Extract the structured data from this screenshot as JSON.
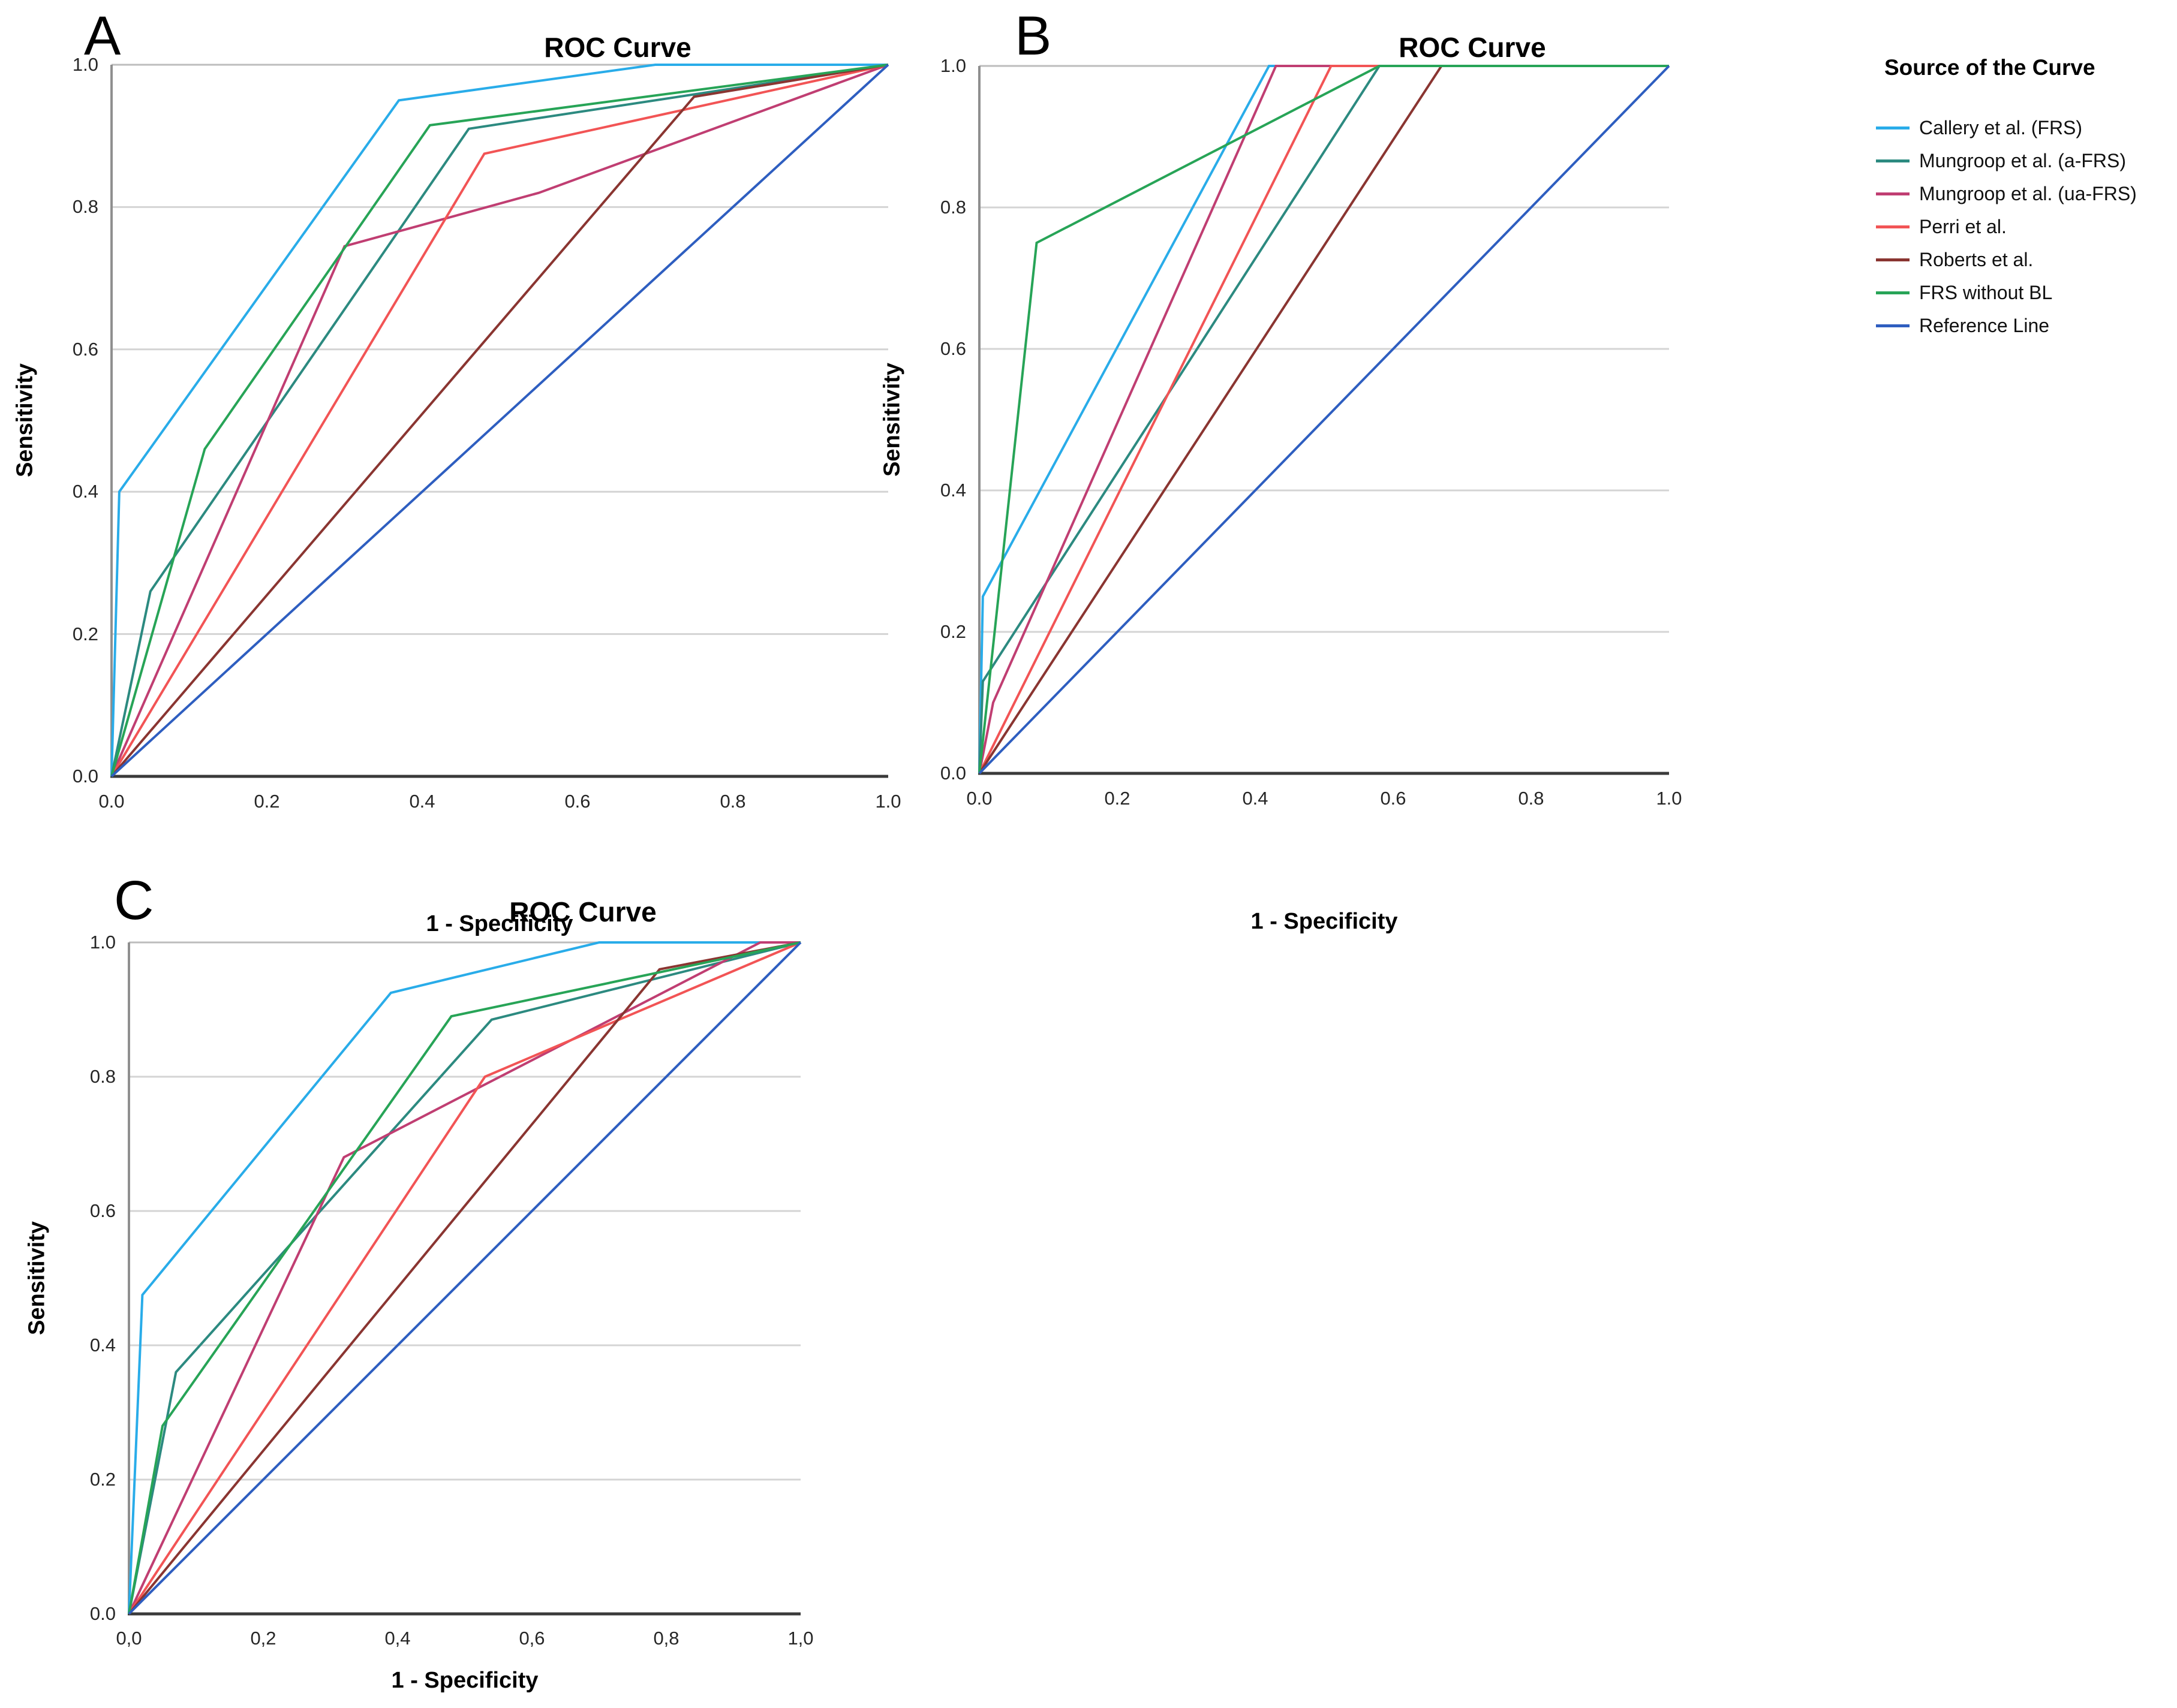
{
  "figure": {
    "background": "#ffffff"
  },
  "legend": {
    "title": "Source of the Curve",
    "items": [
      {
        "label": "Callery et al. (FRS)",
        "color": "#29ACE9"
      },
      {
        "label": "Mungroop et al. (a-FRS)",
        "color": "#2C8A80"
      },
      {
        "label": "Mungroop et al. (ua-FRS)",
        "color": "#C03E72"
      },
      {
        "label": "Perri et al.",
        "color": "#F25455"
      },
      {
        "label": "Roberts et al.",
        "color": "#8A3531"
      },
      {
        "label": "FRS without BL",
        "color": "#27A457"
      },
      {
        "label": "Reference Line",
        "color": "#2E5EC0"
      }
    ]
  },
  "chart_data": [
    {
      "type": "line",
      "panel_label": "A",
      "title": "ROC Curve",
      "xlabel": "1 - Specificity",
      "ylabel": "Sensitivity",
      "xlim": [
        0,
        1
      ],
      "ylim": [
        0,
        1
      ],
      "grid": "horizontal",
      "x_tick_labels": [
        "0.0",
        "0.2",
        "0.4",
        "0.6",
        "0.8",
        "1.0"
      ],
      "y_tick_labels": [
        "0.0",
        "0.2",
        "0.4",
        "0.6",
        "0.8",
        "1.0"
      ],
      "series": [
        {
          "name": "Callery et al. (FRS)",
          "color": "#29ACE9",
          "points": [
            [
              0,
              0
            ],
            [
              0.01,
              0.4
            ],
            [
              0.37,
              0.95
            ],
            [
              0.7,
              1.0
            ],
            [
              1,
              1
            ]
          ]
        },
        {
          "name": "Mungroop et al. (a-FRS)",
          "color": "#2C8A80",
          "points": [
            [
              0,
              0
            ],
            [
              0.05,
              0.26
            ],
            [
              0.46,
              0.91
            ],
            [
              1,
              1
            ]
          ]
        },
        {
          "name": "Mungroop et al. (ua-FRS)",
          "color": "#C03E72",
          "points": [
            [
              0,
              0
            ],
            [
              0.3,
              0.745
            ],
            [
              0.55,
              0.82
            ],
            [
              1,
              1
            ]
          ]
        },
        {
          "name": "Perri et al.",
          "color": "#F25455",
          "points": [
            [
              0,
              0
            ],
            [
              0.48,
              0.875
            ],
            [
              1,
              1
            ]
          ]
        },
        {
          "name": "Roberts et al.",
          "color": "#8A3531",
          "points": [
            [
              0,
              0
            ],
            [
              0.75,
              0.955
            ],
            [
              1,
              1
            ]
          ]
        },
        {
          "name": "FRS without BL",
          "color": "#27A457",
          "points": [
            [
              0,
              0
            ],
            [
              0.12,
              0.46
            ],
            [
              0.41,
              0.915
            ],
            [
              1,
              1
            ]
          ]
        },
        {
          "name": "Reference Line",
          "color": "#2E5EC0",
          "points": [
            [
              0,
              0
            ],
            [
              1,
              1
            ]
          ]
        }
      ]
    },
    {
      "type": "line",
      "panel_label": "B",
      "title": "ROC Curve",
      "xlabel": "1 - Specificity",
      "ylabel": "Sensitivity",
      "xlim": [
        0,
        1
      ],
      "ylim": [
        0,
        1
      ],
      "grid": "horizontal",
      "x_tick_labels": [
        "0.0",
        "0.2",
        "0.4",
        "0.6",
        "0.8",
        "1.0"
      ],
      "y_tick_labels": [
        "0.0",
        "0.2",
        "0.4",
        "0.6",
        "0.8",
        "1.0"
      ],
      "series": [
        {
          "name": "Callery et al. (FRS)",
          "color": "#29ACE9",
          "points": [
            [
              0,
              0
            ],
            [
              0.005,
              0.25
            ],
            [
              0.42,
              1.0
            ],
            [
              1,
              1
            ]
          ]
        },
        {
          "name": "Mungroop et al. (a-FRS)",
          "color": "#2C8A80",
          "points": [
            [
              0,
              0
            ],
            [
              0.005,
              0.13
            ],
            [
              0.58,
              1.0
            ],
            [
              1,
              1
            ]
          ]
        },
        {
          "name": "Mungroop et al. (ua-FRS)",
          "color": "#C03E72",
          "points": [
            [
              0,
              0
            ],
            [
              0.02,
              0.1
            ],
            [
              0.43,
              1.0
            ],
            [
              1,
              1
            ]
          ]
        },
        {
          "name": "Perri et al.",
          "color": "#F25455",
          "points": [
            [
              0,
              0
            ],
            [
              0.51,
              1.0
            ],
            [
              1,
              1
            ]
          ]
        },
        {
          "name": "Roberts et al.",
          "color": "#8A3531",
          "points": [
            [
              0,
              0
            ],
            [
              0.67,
              1.0
            ],
            [
              1,
              1
            ]
          ]
        },
        {
          "name": "FRS without BL",
          "color": "#27A457",
          "points": [
            [
              0,
              0
            ],
            [
              0.083,
              0.75
            ],
            [
              0.58,
              1.0
            ],
            [
              1,
              1
            ]
          ]
        },
        {
          "name": "Reference Line",
          "color": "#2E5EC0",
          "points": [
            [
              0,
              0
            ],
            [
              1,
              1
            ]
          ]
        }
      ]
    },
    {
      "type": "line",
      "panel_label": "C",
      "title": "ROC Curve",
      "xlabel": "1 - Specificity",
      "ylabel": "Sensitivity",
      "xlim": [
        0,
        1
      ],
      "ylim": [
        0,
        1
      ],
      "grid": "horizontal",
      "x_tick_labels": [
        "0,0",
        "0,2",
        "0,4",
        "0,6",
        "0,8",
        "1,0"
      ],
      "y_tick_labels": [
        "0.0",
        "0.2",
        "0.4",
        "0.6",
        "0.8",
        "1.0"
      ],
      "series": [
        {
          "name": "Callery et al. (FRS)",
          "color": "#29ACE9",
          "points": [
            [
              0,
              0
            ],
            [
              0.02,
              0.475
            ],
            [
              0.39,
              0.925
            ],
            [
              0.7,
              1.0
            ],
            [
              1,
              1
            ]
          ]
        },
        {
          "name": "Mungroop et al. (a-FRS)",
          "color": "#2C8A80",
          "points": [
            [
              0,
              0
            ],
            [
              0.07,
              0.36
            ],
            [
              0.54,
              0.885
            ],
            [
              1,
              1
            ]
          ]
        },
        {
          "name": "Mungroop et al. (ua-FRS)",
          "color": "#C03E72",
          "points": [
            [
              0,
              0
            ],
            [
              0.32,
              0.68
            ],
            [
              0.94,
              1.0
            ],
            [
              1,
              1
            ]
          ]
        },
        {
          "name": "Perri et al.",
          "color": "#F25455",
          "points": [
            [
              0,
              0
            ],
            [
              0.53,
              0.8
            ],
            [
              1,
              1
            ]
          ]
        },
        {
          "name": "Roberts et al.",
          "color": "#8A3531",
          "points": [
            [
              0,
              0
            ],
            [
              0.79,
              0.96
            ],
            [
              1,
              1
            ]
          ]
        },
        {
          "name": "FRS without BL",
          "color": "#27A457",
          "points": [
            [
              0,
              0
            ],
            [
              0.05,
              0.28
            ],
            [
              0.48,
              0.89
            ],
            [
              1,
              1
            ]
          ]
        },
        {
          "name": "Reference Line",
          "color": "#2E5EC0",
          "points": [
            [
              0,
              0
            ],
            [
              1,
              1
            ]
          ]
        }
      ]
    }
  ]
}
